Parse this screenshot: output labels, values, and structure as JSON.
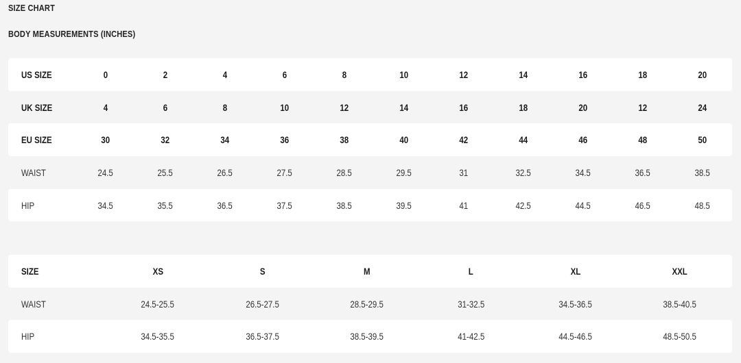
{
  "title": "SIZE CHART",
  "subtitle": "BODY MEASUREMENTS (INCHES)",
  "table1": {
    "rows": [
      {
        "label": "US SIZE",
        "bold": true,
        "values": [
          "0",
          "2",
          "4",
          "6",
          "8",
          "10",
          "12",
          "14",
          "16",
          "18",
          "20"
        ]
      },
      {
        "label": "UK SIZE",
        "bold": true,
        "values": [
          "4",
          "6",
          "8",
          "10",
          "12",
          "14",
          "16",
          "18",
          "20",
          "12",
          "24"
        ]
      },
      {
        "label": "EU SIZE",
        "bold": true,
        "values": [
          "30",
          "32",
          "34",
          "36",
          "38",
          "40",
          "42",
          "44",
          "46",
          "48",
          "50"
        ]
      },
      {
        "label": "WAIST",
        "bold": false,
        "values": [
          "24.5",
          "25.5",
          "26.5",
          "27.5",
          "28.5",
          "29.5",
          "31",
          "32.5",
          "34.5",
          "36.5",
          "38.5"
        ]
      },
      {
        "label": "HIP",
        "bold": false,
        "values": [
          "34.5",
          "35.5",
          "36.5",
          "37.5",
          "38.5",
          "39.5",
          "41",
          "42.5",
          "44.5",
          "46.5",
          "48.5"
        ]
      }
    ]
  },
  "table2": {
    "rows": [
      {
        "label": "SIZE",
        "bold": true,
        "values": [
          "XS",
          "S",
          "M",
          "L",
          "XL",
          "XXL"
        ]
      },
      {
        "label": "WAIST",
        "bold": false,
        "values": [
          "24.5-25.5",
          "26.5-27.5",
          "28.5-29.5",
          "31-32.5",
          "34.5-36.5",
          "38.5-40.5"
        ]
      },
      {
        "label": "HIP",
        "bold": false,
        "values": [
          "34.5-35.5",
          "36.5-37.5",
          "38.5-39.5",
          "41-42.5",
          "44.5-46.5",
          "48.5-50.5"
        ]
      }
    ]
  }
}
